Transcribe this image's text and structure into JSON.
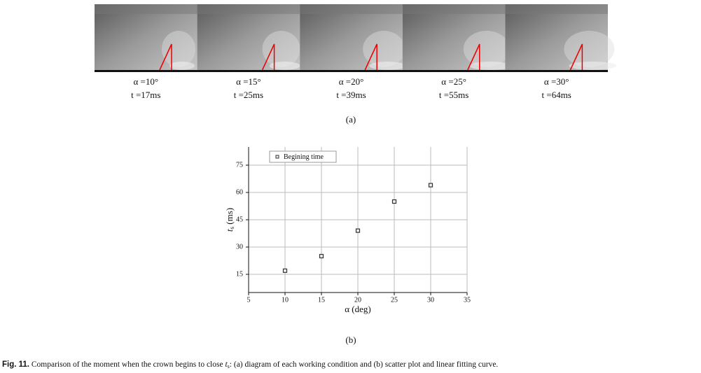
{
  "panel_a": {
    "images": [
      {
        "alpha": "α =10°",
        "time": "t =17ms"
      },
      {
        "alpha": "α =15°",
        "time": "t =25ms"
      },
      {
        "alpha": "α =20°",
        "time": "t =39ms"
      },
      {
        "alpha": "α =25°",
        "time": "t =55ms"
      },
      {
        "alpha": "α =30°",
        "time": "t =64ms"
      }
    ],
    "label": "(a)"
  },
  "chart_data": {
    "type": "scatter",
    "x_label": "α (deg)",
    "y_label": "t",
    "y_label_sub": "s",
    "y_label_unit": " (ms)",
    "x": [
      10,
      15,
      20,
      25,
      30
    ],
    "series": [
      {
        "name": "Begining time",
        "color": "#333333",
        "values": [
          17,
          25,
          39,
          55,
          64
        ]
      }
    ],
    "xlim": [
      5,
      35
    ],
    "xticks": [
      5,
      10,
      15,
      20,
      25,
      30,
      35
    ],
    "ylim": [
      5,
      85
    ],
    "yticks": [
      15,
      30,
      45,
      60,
      75
    ],
    "grid": true,
    "legend": "top-left"
  },
  "panel_b": {
    "label": "(b)"
  },
  "caption": {
    "fig": "Fig. 11.",
    "before": " Comparison of the moment when the crown begins to close ",
    "symbol": "t",
    "sub": "s",
    "after": ": (a) diagram of each working condition and (b) scatter plot and linear fitting curve."
  }
}
